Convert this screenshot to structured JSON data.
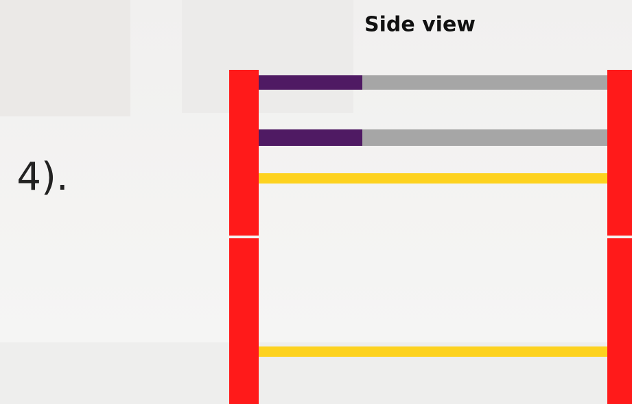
{
  "step_label": "4).",
  "title": "Side view"
}
